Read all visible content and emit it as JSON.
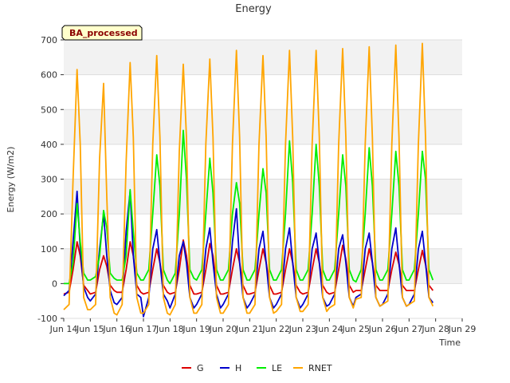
{
  "chart_data": {
    "type": "line",
    "title": "Energy",
    "xlabel": "Time",
    "ylabel": "Energy (W/m2)",
    "badge": "BA_processed",
    "xlim": [
      14,
      29
    ],
    "ylim": [
      -100,
      700
    ],
    "yticks": [
      -100,
      0,
      100,
      200,
      300,
      400,
      500,
      600,
      700
    ],
    "xticks": [
      14,
      15,
      16,
      17,
      18,
      19,
      20,
      21,
      22,
      23,
      24,
      25,
      26,
      27,
      28,
      29
    ],
    "xtick_labels": [
      "Jun 14",
      "Jun 15",
      "Jun 16",
      "Jun 17",
      "Jun 18",
      "Jun 19",
      "Jun 20",
      "Jun 21",
      "Jun 22",
      "Jun 23",
      "Jun 24",
      "Jun 25",
      "Jun 26",
      "Jun 27",
      "Jun 28",
      "Jun 29"
    ],
    "grid": "horizontal bands",
    "legend_position": "bottom",
    "series": [
      {
        "name": "G",
        "color": "#dd0000",
        "x": [
          14.0,
          14.2,
          14.35,
          14.5,
          14.62,
          14.75,
          14.9,
          15.0,
          15.2,
          15.35,
          15.5,
          15.62,
          15.75,
          15.9,
          16.0,
          16.2,
          16.35,
          16.5,
          16.62,
          16.75,
          16.9,
          17.0,
          17.2,
          17.35,
          17.5,
          17.62,
          17.75,
          17.9,
          18.0,
          18.2,
          18.35,
          18.5,
          18.62,
          18.75,
          18.9,
          19.0,
          19.2,
          19.35,
          19.5,
          19.62,
          19.75,
          19.9,
          20.0,
          20.2,
          20.35,
          20.5,
          20.62,
          20.75,
          20.9,
          21.0,
          21.2,
          21.35,
          21.5,
          21.62,
          21.75,
          21.9,
          22.0,
          22.2,
          22.35,
          22.5,
          22.62,
          22.75,
          22.9,
          23.0,
          23.2,
          23.35,
          23.5,
          23.62,
          23.75,
          23.9,
          24.0,
          24.2,
          24.35,
          24.5,
          24.62,
          24.75,
          24.9,
          25.0,
          25.2,
          25.35,
          25.5,
          25.62,
          25.75,
          25.9,
          26.0,
          26.2,
          26.35,
          26.5,
          26.62,
          26.75,
          26.9,
          27.0,
          27.2,
          27.35,
          27.5,
          27.62,
          27.75,
          27.9
        ],
        "values": [
          -30,
          -25,
          40,
          120,
          80,
          -5,
          -20,
          -30,
          -25,
          40,
          80,
          50,
          -5,
          -20,
          -25,
          -25,
          40,
          120,
          80,
          -5,
          -25,
          -30,
          -25,
          40,
          100,
          60,
          -5,
          -25,
          -30,
          -25,
          40,
          125,
          80,
          -5,
          -30,
          -30,
          -25,
          40,
          115,
          80,
          -5,
          -30,
          -30,
          -25,
          40,
          100,
          60,
          -5,
          -30,
          -30,
          -25,
          40,
          100,
          60,
          -5,
          -30,
          -30,
          -25,
          40,
          100,
          60,
          -5,
          -25,
          -30,
          -25,
          40,
          100,
          60,
          -5,
          -25,
          -30,
          -25,
          40,
          110,
          70,
          -5,
          -25,
          -20,
          -20,
          40,
          100,
          60,
          -5,
          -20,
          -20,
          -20,
          40,
          90,
          55,
          -5,
          -20,
          -20,
          -20,
          40,
          95,
          55,
          -5,
          -20
        ]
      },
      {
        "name": "H",
        "color": "#0000cc",
        "x": [
          14.0,
          14.2,
          14.35,
          14.5,
          14.62,
          14.75,
          14.9,
          15.0,
          15.2,
          15.35,
          15.5,
          15.62,
          15.75,
          15.9,
          16.0,
          16.2,
          16.35,
          16.5,
          16.62,
          16.75,
          16.9,
          17.0,
          17.2,
          17.35,
          17.5,
          17.62,
          17.75,
          17.9,
          18.0,
          18.2,
          18.35,
          18.5,
          18.62,
          18.75,
          18.9,
          19.0,
          19.2,
          19.35,
          19.5,
          19.62,
          19.75,
          19.9,
          20.0,
          20.2,
          20.35,
          20.5,
          20.62,
          20.75,
          20.9,
          21.0,
          21.2,
          21.35,
          21.5,
          21.62,
          21.75,
          21.9,
          22.0,
          22.2,
          22.35,
          22.5,
          22.62,
          22.75,
          22.9,
          23.0,
          23.2,
          23.35,
          23.5,
          23.62,
          23.75,
          23.9,
          24.0,
          24.2,
          24.35,
          24.5,
          24.62,
          24.75,
          24.9,
          25.0,
          25.2,
          25.35,
          25.5,
          25.62,
          25.75,
          25.9,
          26.0,
          26.2,
          26.35,
          26.5,
          26.62,
          26.75,
          26.9,
          27.0,
          27.2,
          27.35,
          27.5,
          27.62,
          27.75,
          27.9
        ],
        "values": [
          -35,
          -20,
          120,
          265,
          100,
          -10,
          -40,
          -50,
          -30,
          100,
          200,
          80,
          -20,
          -55,
          -60,
          -40,
          150,
          265,
          80,
          -30,
          -40,
          -95,
          -40,
          100,
          155,
          60,
          -30,
          -50,
          -70,
          -30,
          80,
          120,
          60,
          -40,
          -70,
          -60,
          -30,
          100,
          160,
          60,
          -30,
          -70,
          -60,
          -30,
          120,
          215,
          60,
          -40,
          -70,
          -60,
          -30,
          100,
          150,
          60,
          -40,
          -70,
          -60,
          -30,
          100,
          160,
          60,
          -40,
          -70,
          -60,
          -30,
          100,
          145,
          60,
          -40,
          -65,
          -60,
          -30,
          100,
          140,
          60,
          -40,
          -65,
          -40,
          -30,
          100,
          145,
          60,
          -40,
          -65,
          -60,
          -30,
          100,
          160,
          60,
          -40,
          -65,
          -60,
          -30,
          100,
          150,
          60,
          -40,
          -55
        ]
      },
      {
        "name": "LE",
        "color": "#00ee00",
        "x": [
          14.0,
          14.2,
          14.35,
          14.5,
          14.62,
          14.75,
          14.9,
          15.0,
          15.2,
          15.35,
          15.5,
          15.62,
          15.75,
          15.9,
          16.0,
          16.2,
          16.35,
          16.5,
          16.62,
          16.75,
          16.9,
          17.0,
          17.2,
          17.35,
          17.5,
          17.62,
          17.75,
          17.9,
          18.0,
          18.2,
          18.35,
          18.5,
          18.62,
          18.75,
          18.9,
          19.0,
          19.2,
          19.35,
          19.5,
          19.62,
          19.75,
          19.9,
          20.0,
          20.2,
          20.35,
          20.5,
          20.62,
          20.75,
          20.9,
          21.0,
          21.2,
          21.35,
          21.5,
          21.62,
          21.75,
          21.9,
          22.0,
          22.2,
          22.35,
          22.5,
          22.62,
          22.75,
          22.9,
          23.0,
          23.2,
          23.35,
          23.5,
          23.62,
          23.75,
          23.9,
          24.0,
          24.2,
          24.35,
          24.5,
          24.62,
          24.75,
          24.9,
          25.0,
          25.2,
          25.35,
          25.5,
          25.62,
          25.75,
          25.9,
          26.0,
          26.2,
          26.35,
          26.5,
          26.62,
          26.75,
          26.9,
          27.0,
          27.2,
          27.35,
          27.5,
          27.62,
          27.75,
          27.9
        ],
        "values": [
          0,
          0,
          60,
          230,
          120,
          30,
          10,
          10,
          20,
          80,
          210,
          160,
          30,
          15,
          10,
          10,
          80,
          270,
          150,
          30,
          10,
          10,
          40,
          200,
          370,
          280,
          40,
          10,
          0,
          30,
          200,
          440,
          300,
          40,
          15,
          10,
          40,
          200,
          360,
          260,
          40,
          10,
          10,
          40,
          200,
          290,
          230,
          40,
          10,
          10,
          40,
          200,
          330,
          260,
          40,
          10,
          10,
          40,
          200,
          410,
          290,
          40,
          10,
          10,
          40,
          200,
          400,
          280,
          40,
          10,
          10,
          40,
          200,
          370,
          280,
          40,
          10,
          5,
          40,
          200,
          390,
          280,
          40,
          10,
          10,
          40,
          200,
          380,
          280,
          40,
          10,
          10,
          40,
          200,
          380,
          300,
          40,
          10
        ]
      },
      {
        "name": "RNET",
        "color": "#ffa500",
        "x": [
          14.0,
          14.2,
          14.35,
          14.5,
          14.62,
          14.75,
          14.9,
          15.0,
          15.2,
          15.35,
          15.5,
          15.62,
          15.75,
          15.9,
          16.0,
          16.2,
          16.35,
          16.5,
          16.62,
          16.75,
          16.9,
          17.0,
          17.2,
          17.35,
          17.5,
          17.62,
          17.75,
          17.9,
          18.0,
          18.2,
          18.35,
          18.5,
          18.62,
          18.75,
          18.9,
          19.0,
          19.2,
          19.35,
          19.5,
          19.62,
          19.75,
          19.9,
          20.0,
          20.2,
          20.35,
          20.5,
          20.62,
          20.75,
          20.9,
          21.0,
          21.2,
          21.35,
          21.5,
          21.62,
          21.75,
          21.9,
          22.0,
          22.2,
          22.35,
          22.5,
          22.62,
          22.75,
          22.9,
          23.0,
          23.2,
          23.35,
          23.5,
          23.62,
          23.75,
          23.9,
          24.0,
          24.2,
          24.35,
          24.5,
          24.62,
          24.75,
          24.9,
          25.0,
          25.2,
          25.35,
          25.5,
          25.62,
          25.75,
          25.9,
          26.0,
          26.2,
          26.35,
          26.5,
          26.62,
          26.75,
          26.9,
          27.0,
          27.2,
          27.35,
          27.5,
          27.62,
          27.75,
          27.9
        ],
        "values": [
          -75,
          -60,
          300,
          615,
          400,
          -40,
          -75,
          -75,
          -60,
          360,
          575,
          250,
          -40,
          -85,
          -90,
          -60,
          350,
          635,
          420,
          -40,
          -85,
          -85,
          -60,
          400,
          655,
          420,
          -40,
          -85,
          -90,
          -60,
          380,
          630,
          420,
          -40,
          -85,
          -85,
          -60,
          400,
          645,
          420,
          -40,
          -85,
          -85,
          -60,
          400,
          670,
          420,
          -40,
          -85,
          -85,
          -60,
          400,
          655,
          420,
          -40,
          -85,
          -80,
          -60,
          400,
          670,
          420,
          -40,
          -80,
          -80,
          -60,
          400,
          670,
          420,
          -40,
          -80,
          -70,
          -60,
          400,
          675,
          420,
          -40,
          -70,
          -45,
          -40,
          400,
          680,
          420,
          -40,
          -65,
          -60,
          -50,
          400,
          685,
          420,
          -40,
          -65,
          -60,
          -50,
          400,
          690,
          420,
          -40,
          -65
        ]
      }
    ]
  }
}
